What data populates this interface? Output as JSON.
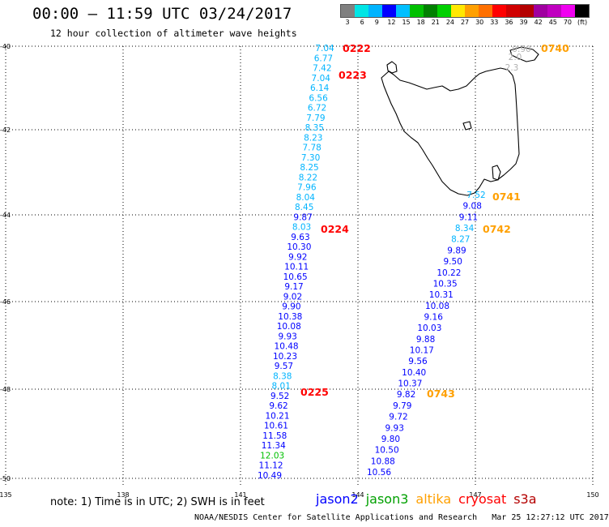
{
  "header": {
    "title": "00:00 – 11:59 UTC 03/24/2017",
    "subtitle": "12 hour collection of altimeter wave heights"
  },
  "colorscale": {
    "colors": [
      "#808080",
      "#00e5e5",
      "#00b4ff",
      "#0000ff",
      "#00bfff",
      "#00c000",
      "#008000",
      "#00d000",
      "#ffe800",
      "#ffa000",
      "#ff7000",
      "#ff0000",
      "#d00000",
      "#b40000",
      "#a000a0",
      "#c000c0",
      "#f000f0",
      "#000000"
    ],
    "labels": [
      "3",
      "6",
      "9",
      "12",
      "15",
      "18",
      "21",
      "24",
      "27",
      "30",
      "33",
      "36",
      "39",
      "42",
      "45",
      "70",
      "(ft)"
    ]
  },
  "axes": {
    "lat_labels": [
      "-40",
      "-42",
      "-44",
      "-46",
      "-48",
      "-50"
    ],
    "lon_labels": [
      "135",
      "138",
      "141",
      "144",
      "147",
      "150"
    ]
  },
  "tracks": [
    {
      "satellite": "jason2",
      "colors_hint": "cyan-to-blue",
      "points": [
        {
          "v": "7.04",
          "c": "#00b4ff"
        },
        {
          "v": "6.77",
          "c": "#00b4ff"
        },
        {
          "v": "7.42",
          "c": "#00b4ff"
        },
        {
          "v": "7.04",
          "c": "#00b4ff"
        },
        {
          "v": "6.14",
          "c": "#00b4ff"
        },
        {
          "v": "6.56",
          "c": "#00b4ff"
        },
        {
          "v": "6.72",
          "c": "#00b4ff"
        },
        {
          "v": "7.79",
          "c": "#00b4ff"
        },
        {
          "v": "8.35",
          "c": "#00b4ff"
        },
        {
          "v": "8.23",
          "c": "#00b4ff"
        },
        {
          "v": "7.78",
          "c": "#00b4ff"
        },
        {
          "v": "7.30",
          "c": "#00b4ff"
        },
        {
          "v": "8.25",
          "c": "#00b4ff"
        },
        {
          "v": "8.22",
          "c": "#00b4ff"
        },
        {
          "v": "7.96",
          "c": "#00b4ff"
        },
        {
          "v": "8.04",
          "c": "#00b4ff"
        },
        {
          "v": "8.45",
          "c": "#00b4ff"
        },
        {
          "v": "9.87",
          "c": "#0000ff"
        },
        {
          "v": "8.03",
          "c": "#00b4ff"
        },
        {
          "v": "9.63",
          "c": "#0000ff"
        },
        {
          "v": "10.30",
          "c": "#0000ff"
        },
        {
          "v": "9.92",
          "c": "#0000ff"
        },
        {
          "v": "10.11",
          "c": "#0000ff"
        },
        {
          "v": "10.65",
          "c": "#0000ff"
        },
        {
          "v": "9.17",
          "c": "#0000ff"
        },
        {
          "v": "9.02",
          "c": "#0000ff"
        },
        {
          "v": "9.90",
          "c": "#0000ff"
        },
        {
          "v": "10.38",
          "c": "#0000ff"
        },
        {
          "v": "10.08",
          "c": "#0000ff"
        },
        {
          "v": "9.93",
          "c": "#0000ff"
        },
        {
          "v": "10.48",
          "c": "#0000ff"
        },
        {
          "v": "10.23",
          "c": "#0000ff"
        },
        {
          "v": "9.57",
          "c": "#0000ff"
        },
        {
          "v": "8.38",
          "c": "#00b4ff"
        },
        {
          "v": "8.01",
          "c": "#00b4ff"
        },
        {
          "v": "9.52",
          "c": "#0000ff"
        },
        {
          "v": "9.62",
          "c": "#0000ff"
        },
        {
          "v": "10.21",
          "c": "#0000ff"
        },
        {
          "v": "10.61",
          "c": "#0000ff"
        },
        {
          "v": "11.58",
          "c": "#0000ff"
        },
        {
          "v": "11.34",
          "c": "#0000ff"
        },
        {
          "v": "12.03",
          "c": "#00c000"
        },
        {
          "v": "11.12",
          "c": "#0000ff"
        },
        {
          "v": "10.49",
          "c": "#0000ff"
        }
      ]
    },
    {
      "satellite": "jason2",
      "points": [
        {
          "v": "7.52",
          "c": "#00b4ff"
        },
        {
          "v": "9.08",
          "c": "#0000ff"
        },
        {
          "v": "9.11",
          "c": "#0000ff"
        },
        {
          "v": "8.34",
          "c": "#00b4ff"
        },
        {
          "v": "8.27",
          "c": "#00b4ff"
        },
        {
          "v": "9.89",
          "c": "#0000ff"
        },
        {
          "v": "9.50",
          "c": "#0000ff"
        },
        {
          "v": "10.22",
          "c": "#0000ff"
        },
        {
          "v": "10.35",
          "c": "#0000ff"
        },
        {
          "v": "10.31",
          "c": "#0000ff"
        },
        {
          "v": "10.08",
          "c": "#0000ff"
        },
        {
          "v": "9.16",
          "c": "#0000ff"
        },
        {
          "v": "10.03",
          "c": "#0000ff"
        },
        {
          "v": "9.88",
          "c": "#0000ff"
        },
        {
          "v": "10.17",
          "c": "#0000ff"
        },
        {
          "v": "9.56",
          "c": "#0000ff"
        },
        {
          "v": "10.40",
          "c": "#0000ff"
        },
        {
          "v": "10.37",
          "c": "#0000ff"
        },
        {
          "v": "9.82",
          "c": "#0000ff"
        },
        {
          "v": "9.79",
          "c": "#0000ff"
        },
        {
          "v": "9.72",
          "c": "#0000ff"
        },
        {
          "v": "9.93",
          "c": "#0000ff"
        },
        {
          "v": "9.80",
          "c": "#0000ff"
        },
        {
          "v": "10.50",
          "c": "#0000ff"
        },
        {
          "v": "10.88",
          "c": "#0000ff"
        },
        {
          "v": "10.56",
          "c": "#0000ff"
        }
      ]
    },
    {
      "satellite": "other",
      "points": [
        {
          "v": "0.90",
          "c": "#b0b0b0"
        },
        {
          "v": "2.0",
          "c": "#b0b0b0"
        },
        {
          "v": "2.3",
          "c": "#b0b0b0"
        }
      ]
    }
  ],
  "time_labels": [
    {
      "t": "0222",
      "c": "#ff0000"
    },
    {
      "t": "0223",
      "c": "#ff0000"
    },
    {
      "t": "0224",
      "c": "#ff0000"
    },
    {
      "t": "0225",
      "c": "#ff0000"
    },
    {
      "t": "0740",
      "c": "#ffa000"
    },
    {
      "t": "0741",
      "c": "#ffa000"
    },
    {
      "t": "0742",
      "c": "#ffa000"
    },
    {
      "t": "0743",
      "c": "#ffa000"
    }
  ],
  "note": "note: 1) Time is in UTC; 2) SWH is in feet",
  "legend": [
    {
      "name": "jason2",
      "color": "#0000ff"
    },
    {
      "name": "jason3",
      "color": "#00a000"
    },
    {
      "name": "altika",
      "color": "#ffa000"
    },
    {
      "name": "cryosat",
      "color": "#ff0000"
    },
    {
      "name": "s3a",
      "color": "#b40000"
    }
  ],
  "footer": "NOAA/NESDIS Center for Satellite Applications and Research   Mar 25 12:27:12 UTC 2017"
}
